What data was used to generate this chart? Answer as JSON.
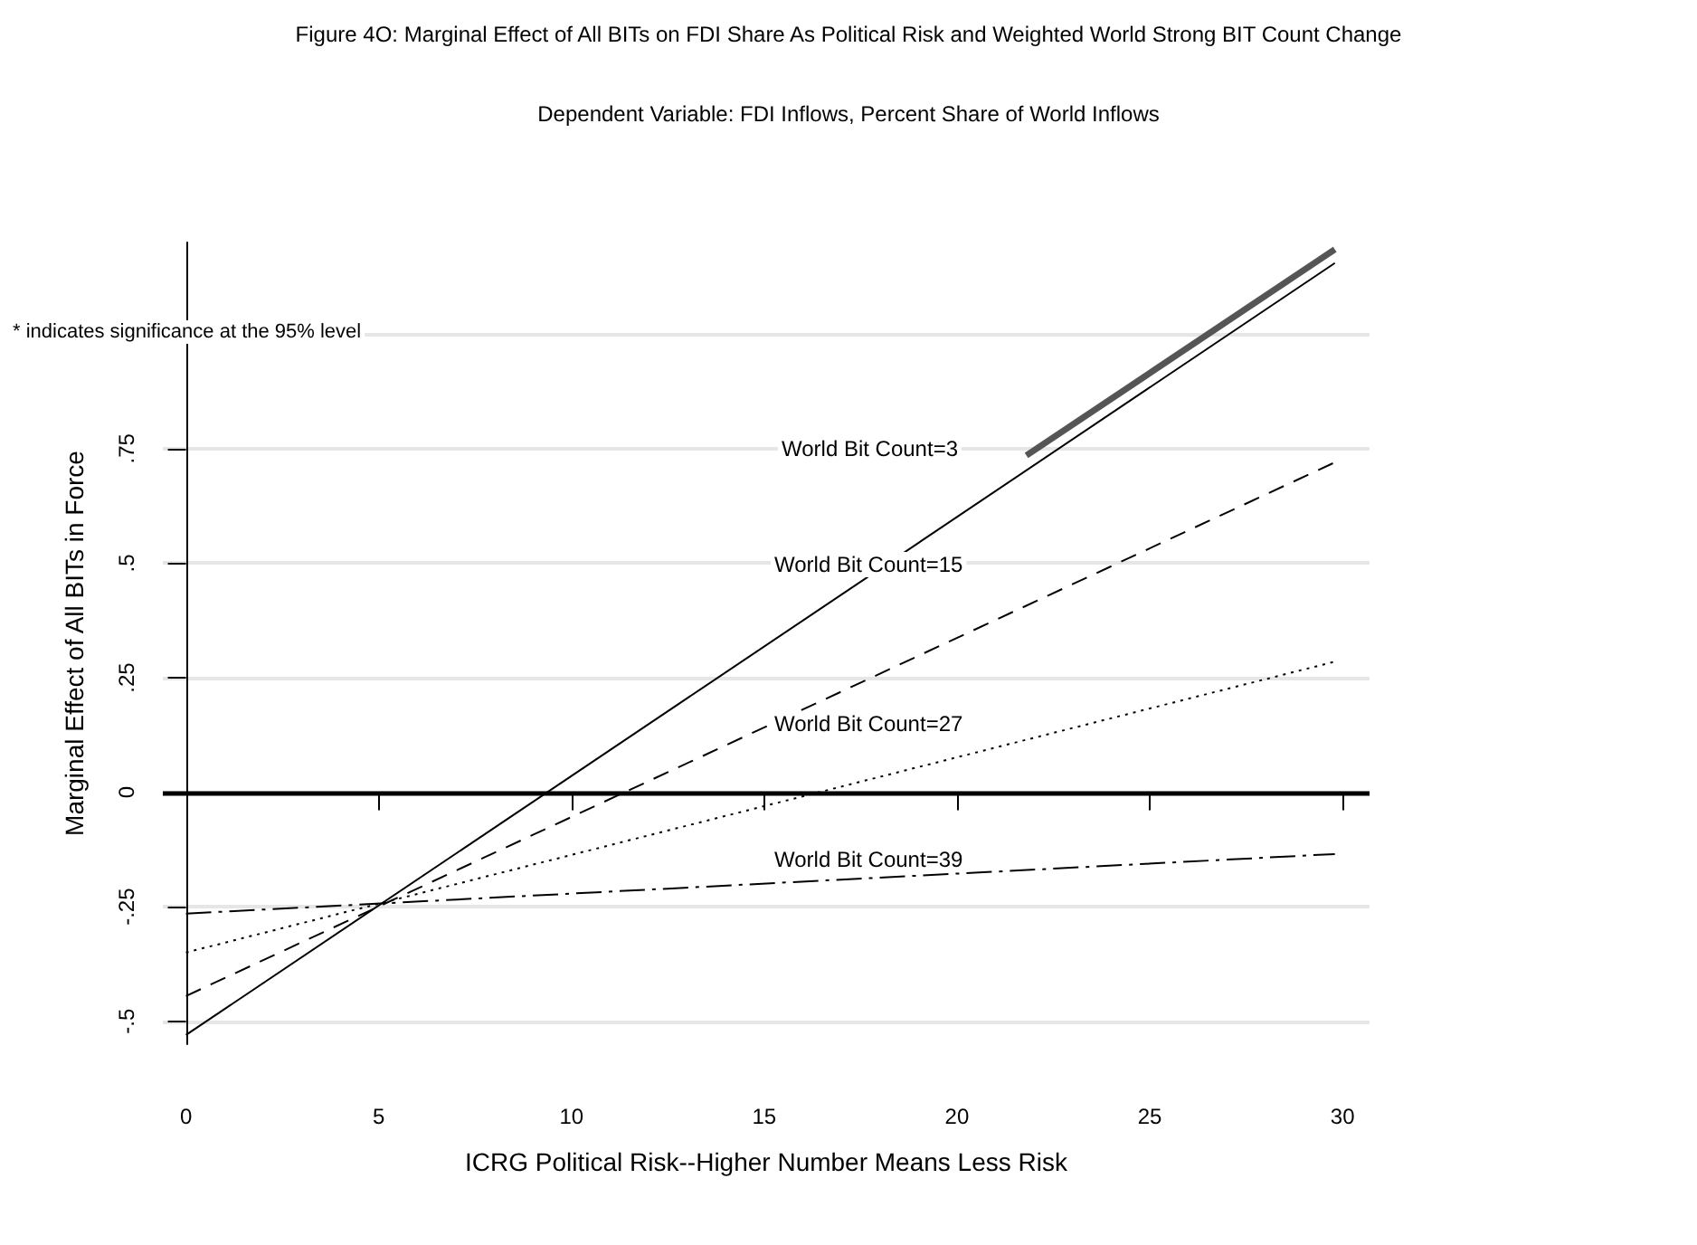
{
  "chart_data": {
    "type": "line",
    "title": "Figure 4O: Marginal Effect of All BITs on FDI Share As Political Risk and Weighted World Strong BIT Count Change",
    "subtitle": "Dependent Variable: FDI Inflows, Percent Share of World Inflows",
    "xlabel": "ICRG Political Risk--Higher Number Means Less Risk",
    "ylabel": "Marginal Effect of All BITs in Force",
    "x": [
      0,
      29.8
    ],
    "series": [
      {
        "color": "#000000",
        "line_style": "solid",
        "values": [
          -0.53,
          1.155
        ]
      },
      {
        "color": "#000000",
        "line_style": "dashed",
        "values": [
          -0.445,
          0.72
        ]
      },
      {
        "color": "#000000",
        "line_style": "dotted",
        "values": [
          -0.35,
          0.285
        ]
      },
      {
        "color": "#000000",
        "line_style": "dashdot",
        "values": [
          -0.265,
          -0.135
        ]
      },
      {
        "color": "#555555",
        "line_style": "solid",
        "x": [
          21.8,
          29.8
        ],
        "values": [
          0.735,
          1.185
        ]
      }
    ],
    "annotations": [
      "World Bit Count=3",
      "World Bit Count=15",
      "World Bit Count=27",
      "World Bit Count=39",
      "* indicates significance at the 95% level"
    ],
    "ref_lines": [
      {
        "axis": "y",
        "value": 0,
        "color": "#000000"
      }
    ],
    "xlim": [
      -0.6,
      30.7
    ],
    "ylim": [
      -0.55,
      1.2
    ],
    "xticks": [
      0,
      5,
      10,
      15,
      20,
      25,
      30
    ],
    "yticks": [
      {
        "value": -0.5,
        "label": "-.5"
      },
      {
        "value": -0.25,
        "label": "-.25"
      },
      {
        "value": 0,
        "label": "0"
      },
      {
        "value": 0.25,
        "label": ".25"
      },
      {
        "value": 0.5,
        "label": ".5"
      },
      {
        "value": 0.75,
        "label": ".75"
      },
      {
        "value": 1,
        "label": null
      }
    ],
    "grid": "y",
    "marker": "none"
  }
}
